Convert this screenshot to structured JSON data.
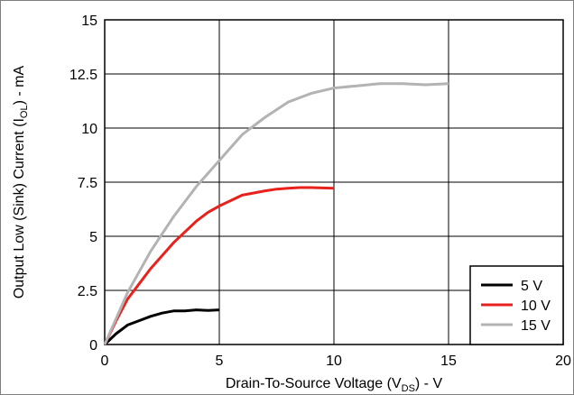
{
  "chart_data": {
    "type": "line",
    "title": "",
    "xlabel": "Drain-To-Source Voltage (V_DS) - V",
    "xlabel_parts": [
      "Drain-To-Source Voltage (V",
      "DS",
      ") - V"
    ],
    "ylabel": "Output Low (Sink) Current (I_OL) - mA",
    "ylabel_parts": [
      "Output Low (Sink) Current (I",
      "OL",
      ") - mA"
    ],
    "xlim": [
      0,
      20
    ],
    "ylim": [
      0,
      15
    ],
    "x_ticks": [
      0,
      5,
      10,
      15,
      20
    ],
    "x_tick_labels": [
      "0",
      "5",
      "10",
      "15",
      "20"
    ],
    "y_ticks": [
      0,
      2.5,
      5,
      7.5,
      10,
      12.5,
      15
    ],
    "y_tick_labels": [
      "0",
      "2.5",
      "5",
      "7.5",
      "10",
      "12.5",
      "15"
    ],
    "grid": true,
    "legend_position": "bottom-right",
    "series": [
      {
        "name": "5 V",
        "color": "#000000",
        "x": [
          0,
          0.5,
          1,
          1.5,
          2,
          2.5,
          3,
          3.5,
          4,
          4.5,
          5
        ],
        "y": [
          0,
          0.5,
          0.9,
          1.1,
          1.3,
          1.45,
          1.55,
          1.55,
          1.6,
          1.57,
          1.6
        ]
      },
      {
        "name": "10 V",
        "color": "#e8211c",
        "x": [
          0,
          0.5,
          1,
          1.5,
          2,
          2.5,
          3,
          3.5,
          4,
          4.5,
          5,
          6,
          7,
          7.5,
          8,
          8.5,
          9,
          10
        ],
        "y": [
          0,
          1.1,
          2.1,
          2.8,
          3.5,
          4.1,
          4.7,
          5.2,
          5.7,
          6.1,
          6.4,
          6.9,
          7.1,
          7.18,
          7.22,
          7.25,
          7.25,
          7.22
        ]
      },
      {
        "name": "15 V",
        "color": "#b3b3b3",
        "x": [
          0,
          0.5,
          1,
          2,
          3,
          4,
          5,
          6,
          7,
          8,
          9,
          10,
          11,
          12,
          13,
          14,
          15
        ],
        "y": [
          0,
          1.2,
          2.4,
          4.3,
          5.9,
          7.3,
          8.5,
          9.7,
          10.5,
          11.2,
          11.6,
          11.85,
          11.95,
          12.05,
          12.05,
          12.0,
          12.05
        ]
      }
    ]
  }
}
